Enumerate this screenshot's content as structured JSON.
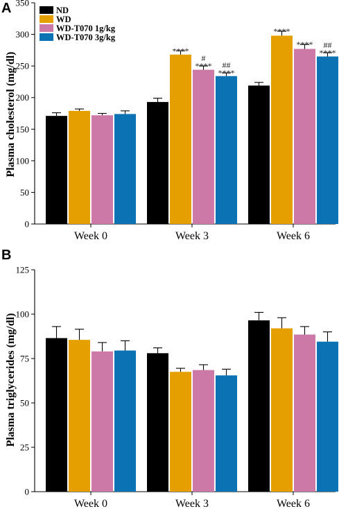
{
  "colors": {
    "ND": "#000000",
    "WD": "#e5a000",
    "WD-T070 1g/kg": "#cd79a7",
    "WD-T070 3g/kg": "#0b72b3"
  },
  "legend": [
    "ND",
    "WD",
    "WD-T070 1g/kg",
    "WD-T070 3g/kg"
  ],
  "chart_data": [
    {
      "panel": "A",
      "type": "bar",
      "ylabel": "Plasma cholesterol (mg/dl)",
      "ylim": [
        0,
        350
      ],
      "yticks": [
        0,
        50,
        100,
        150,
        200,
        250,
        300,
        350
      ],
      "categories": [
        "Week 0",
        "Week 3",
        "Week 6"
      ],
      "series": [
        {
          "name": "ND",
          "values": [
            171,
            193,
            219
          ],
          "errors": [
            5,
            6,
            5
          ]
        },
        {
          "name": "WD",
          "values": [
            179,
            268,
            298
          ],
          "errors": [
            3,
            6,
            7
          ]
        },
        {
          "name": "WD-T070 1g/kg",
          "values": [
            172,
            244,
            277
          ],
          "errors": [
            3,
            6,
            7
          ]
        },
        {
          "name": "WD-T070 3g/kg",
          "values": [
            174,
            234,
            265
          ],
          "errors": [
            5,
            5,
            6
          ]
        }
      ],
      "annotations": [
        {
          "category": "Week 3",
          "series": "WD",
          "stars": "****",
          "hash": ""
        },
        {
          "category": "Week 3",
          "series": "WD-T070 1g/kg",
          "stars": "****",
          "hash": "#"
        },
        {
          "category": "Week 3",
          "series": "WD-T070 3g/kg",
          "stars": "****",
          "hash": "##"
        },
        {
          "category": "Week 6",
          "series": "WD",
          "stars": "****",
          "hash": ""
        },
        {
          "category": "Week 6",
          "series": "WD-T070 1g/kg",
          "stars": "****",
          "hash": ""
        },
        {
          "category": "Week 6",
          "series": "WD-T070 3g/kg",
          "stars": "****",
          "hash": "##"
        }
      ]
    },
    {
      "panel": "B",
      "type": "bar",
      "ylabel": "Plasma triglycerides (mg/dl)",
      "ylim": [
        0,
        125
      ],
      "yticks": [
        0,
        25,
        50,
        75,
        100,
        125
      ],
      "categories": [
        "Week 0",
        "Week 3",
        "Week 6"
      ],
      "series": [
        {
          "name": "ND",
          "values": [
            86.5,
            78,
            96.5
          ],
          "errors": [
            6.5,
            3,
            4.5
          ]
        },
        {
          "name": "WD",
          "values": [
            85.5,
            67.5,
            92
          ],
          "errors": [
            6,
            2,
            6
          ]
        },
        {
          "name": "WD-T070 1g/kg",
          "values": [
            79,
            68.5,
            88.5
          ],
          "errors": [
            5,
            3,
            4.5
          ]
        },
        {
          "name": "WD-T070 3g/kg",
          "values": [
            79.5,
            65.5,
            84.5
          ],
          "errors": [
            5.5,
            3.5,
            5.5
          ]
        }
      ],
      "annotations": []
    }
  ]
}
